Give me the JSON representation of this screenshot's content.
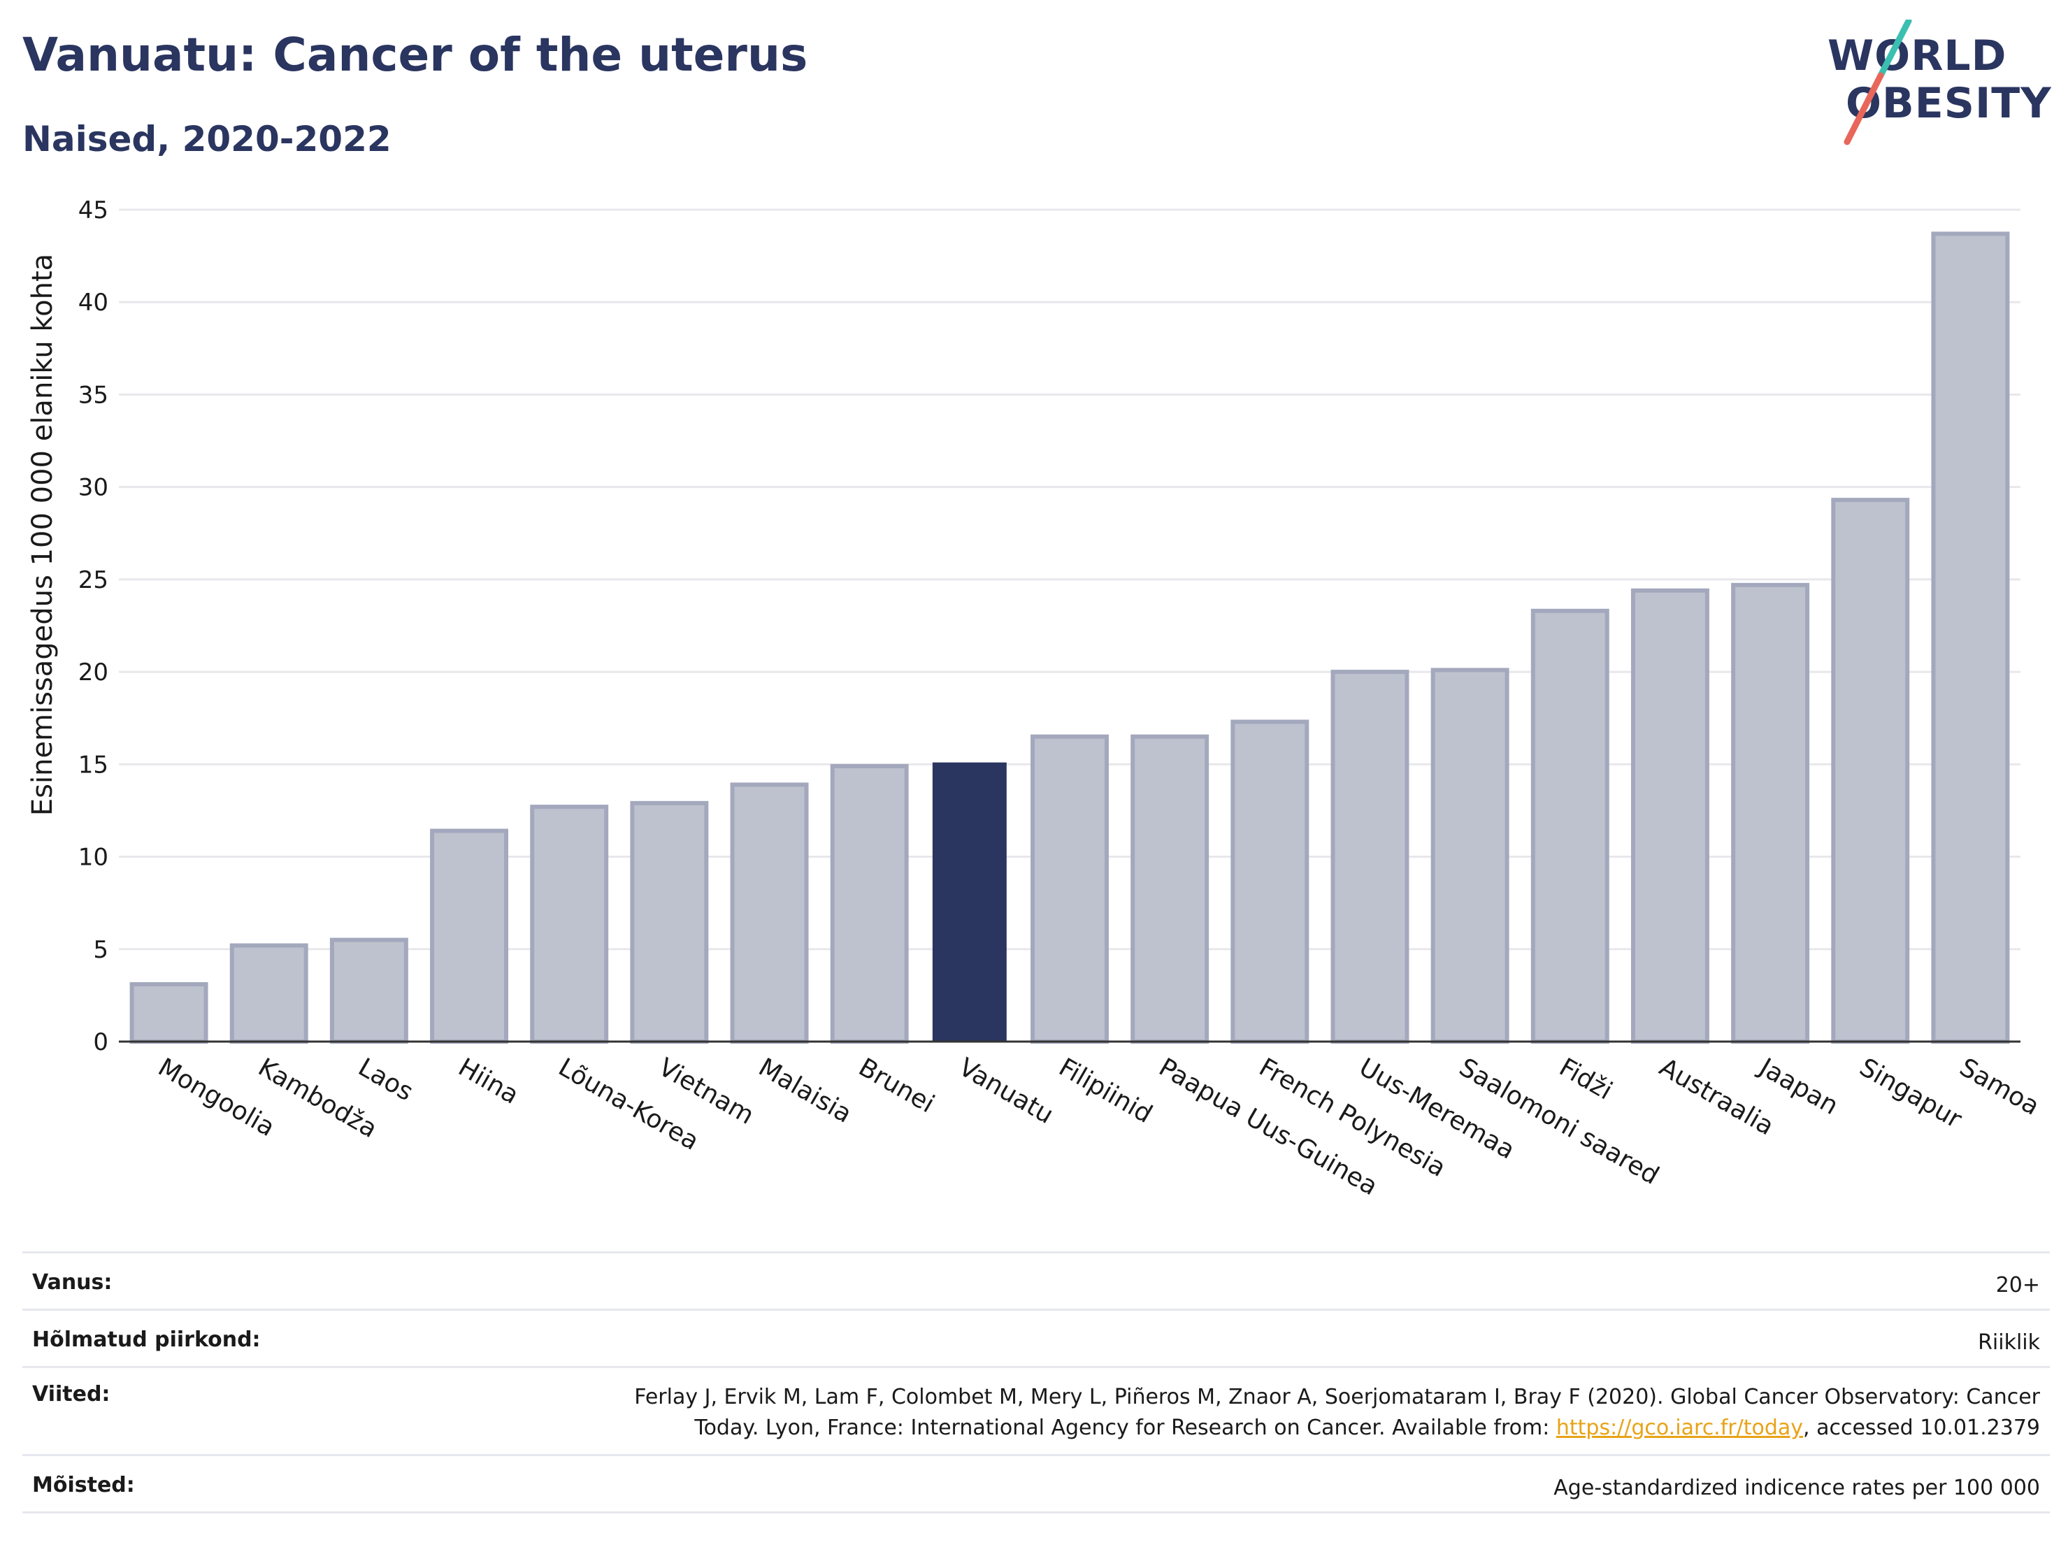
{
  "header": {
    "title": "Vanuatu: Cancer of the uterus",
    "subtitle": "Naised, 2020-2022"
  },
  "logo": {
    "line1": "WORLD",
    "line2": "OBESITY",
    "colors": {
      "text": "#2a3560",
      "slash_top": "#3bbfb0",
      "slash_bottom": "#e8675a"
    }
  },
  "chart_data": {
    "type": "bar",
    "ylabel": "Esinemissagedus 100 000 elaniku kohta",
    "xlabel": "",
    "ylim": [
      0,
      45
    ],
    "yticks": [
      0,
      5,
      10,
      15,
      20,
      25,
      30,
      35,
      40,
      45
    ],
    "grid": true,
    "highlight": "Vanuatu",
    "colors": {
      "bar": "#bec2ce",
      "bar_edge": "#a3a8bd",
      "highlight": "#2a3560",
      "grid": "#e8e8ec",
      "axis": "#333333"
    },
    "categories": [
      "Mongoolia",
      "Kambodža",
      "Laos",
      "Hiina",
      "Lõuna-Korea",
      "Vietnam",
      "Malaisia",
      "Brunei",
      "Vanuatu",
      "Filipiinid",
      "Paapua Uus-Guinea",
      "French Polynesia",
      "Uus-Meremaa",
      "Saalomoni saared",
      "Fidži",
      "Austraalia",
      "Jaapan",
      "Singapur",
      "Samoa"
    ],
    "values": [
      3.1,
      5.2,
      5.5,
      11.4,
      12.7,
      12.9,
      13.9,
      14.9,
      15.1,
      16.5,
      16.5,
      17.3,
      20.0,
      20.1,
      23.3,
      24.4,
      24.7,
      29.3,
      43.7
    ]
  },
  "info": {
    "age_label": "Vanus:",
    "age_value": "20+",
    "region_label": "Hõlmatud piirkond:",
    "region_value": "Riiklik",
    "refs_label": "Viited:",
    "refs_line1": "Ferlay J, Ervik M, Lam F, Colombet M, Mery L, Piñeros M, Znaor A, Soerjomataram I, Bray F (2020). Global Cancer Observatory: Cancer",
    "refs_line2_pre": "Today. Lyon, France: International Agency for Research on Cancer. Available from: ",
    "refs_link": "https://gco.iarc.fr/today",
    "refs_line2_post": ", accessed 10.01.2379",
    "defs_label": "Mõisted:",
    "defs_value": "Age-standardized indicence rates per 100 000"
  }
}
